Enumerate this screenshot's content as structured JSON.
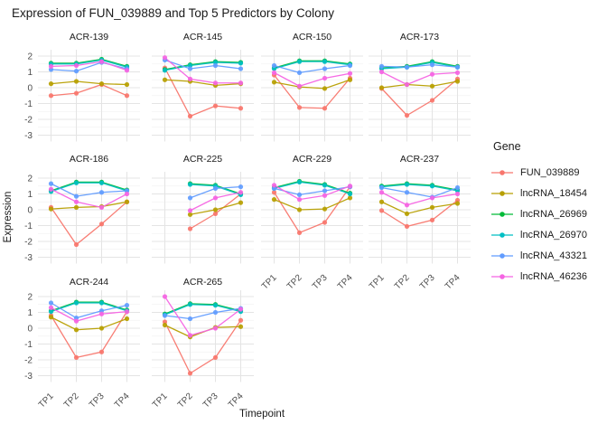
{
  "chart_data": {
    "type": "line",
    "title": "Expression of FUN_039889 and Top 5 Predictors by Colony",
    "xlabel": "Timepoint",
    "ylabel": "Expression",
    "legend_title": "Gene",
    "legend_position": "right",
    "x_categories": [
      "TP1",
      "TP2",
      "TP3",
      "TP4"
    ],
    "yticks": [
      2,
      1,
      0,
      -1,
      -2,
      -3
    ],
    "ylim": [
      -3.4,
      2.4
    ],
    "grid": true,
    "genes": [
      {
        "name": "FUN_039889",
        "color": "#F8766D"
      },
      {
        "name": "lncRNA_18454",
        "color": "#B79F00"
      },
      {
        "name": "lncRNA_26969",
        "color": "#00BA38"
      },
      {
        "name": "lncRNA_26970",
        "color": "#00BFC4"
      },
      {
        "name": "lncRNA_43321",
        "color": "#619CFF"
      },
      {
        "name": "lncRNA_46236",
        "color": "#F564E3"
      }
    ],
    "facets": [
      {
        "colony": "ACR-139",
        "series": {
          "FUN_039889": [
            -0.5,
            -0.35,
            0.2,
            -0.5
          ],
          "lncRNA_18454": [
            0.25,
            0.4,
            0.25,
            0.2
          ],
          "lncRNA_26969": [
            1.55,
            1.55,
            1.8,
            1.35
          ],
          "lncRNA_26970": [
            1.5,
            1.5,
            1.75,
            1.3
          ],
          "lncRNA_43321": [
            1.15,
            1.05,
            1.6,
            1.2
          ],
          "lncRNA_46236": [
            1.35,
            1.4,
            1.65,
            1.1
          ]
        }
      },
      {
        "colony": "ACR-145",
        "series": {
          "FUN_039889": [
            1.25,
            -1.8,
            -1.15,
            -1.3
          ],
          "lncRNA_18454": [
            0.5,
            0.4,
            0.15,
            0.25
          ],
          "lncRNA_26969": [
            1.15,
            1.45,
            1.65,
            1.6
          ],
          "lncRNA_26970": [
            1.1,
            1.4,
            1.6,
            1.55
          ],
          "lncRNA_43321": [
            1.75,
            1.2,
            1.4,
            1.2
          ],
          "lncRNA_46236": [
            1.9,
            0.55,
            0.3,
            0.3
          ]
        }
      },
      {
        "colony": "ACR-150",
        "series": {
          "FUN_039889": [
            0.8,
            -1.25,
            -1.3,
            0.6
          ],
          "lncRNA_18454": [
            0.35,
            0.05,
            -0.05,
            0.5
          ],
          "lncRNA_26969": [
            1.25,
            1.7,
            1.7,
            1.5
          ],
          "lncRNA_26970": [
            1.2,
            1.65,
            1.65,
            1.45
          ],
          "lncRNA_43321": [
            1.4,
            0.95,
            1.2,
            1.4
          ],
          "lncRNA_46236": [
            0.95,
            0.1,
            0.6,
            0.9
          ]
        }
      },
      {
        "colony": "ACR-173",
        "series": {
          "FUN_039889": [
            -0.05,
            -1.75,
            -0.8,
            0.55
          ],
          "lncRNA_18454": [
            0.0,
            0.2,
            0.1,
            0.4
          ],
          "lncRNA_26969": [
            1.25,
            1.35,
            1.65,
            1.35
          ],
          "lncRNA_26970": [
            1.2,
            1.3,
            1.6,
            1.3
          ],
          "lncRNA_43321": [
            1.35,
            1.3,
            1.45,
            1.3
          ],
          "lncRNA_46236": [
            1.0,
            0.2,
            0.85,
            0.95
          ]
        }
      },
      {
        "colony": "ACR-186",
        "series": {
          "FUN_039889": [
            0.15,
            -2.2,
            -0.9,
            0.5
          ],
          "lncRNA_18454": [
            0.05,
            0.15,
            0.2,
            0.5
          ],
          "lncRNA_26969": [
            1.2,
            1.75,
            1.75,
            1.25
          ],
          "lncRNA_26970": [
            1.15,
            1.7,
            1.7,
            1.2
          ],
          "lncRNA_43321": [
            1.65,
            0.85,
            1.1,
            1.2
          ],
          "lncRNA_46236": [
            1.3,
            0.5,
            0.15,
            1.0
          ]
        }
      },
      {
        "colony": "ACR-225",
        "series": {
          "FUN_039889": [
            null,
            -1.2,
            -0.25,
            1.0
          ],
          "lncRNA_18454": [
            null,
            -0.3,
            0.0,
            0.45
          ],
          "lncRNA_26969": [
            null,
            1.65,
            1.55,
            1.0
          ],
          "lncRNA_26970": [
            null,
            1.6,
            1.5,
            0.95
          ],
          "lncRNA_43321": [
            null,
            0.75,
            1.35,
            1.45
          ],
          "lncRNA_46236": [
            null,
            -0.05,
            0.75,
            1.1
          ]
        }
      },
      {
        "colony": "ACR-229",
        "series": {
          "FUN_039889": [
            1.1,
            -1.45,
            -0.8,
            1.45
          ],
          "lncRNA_18454": [
            0.65,
            0.0,
            0.05,
            0.75
          ],
          "lncRNA_26969": [
            1.4,
            1.8,
            1.6,
            1.05
          ],
          "lncRNA_26970": [
            1.35,
            1.75,
            1.55,
            1.0
          ],
          "lncRNA_43321": [
            1.35,
            0.95,
            1.2,
            1.45
          ],
          "lncRNA_46236": [
            1.55,
            0.65,
            0.9,
            1.5
          ]
        }
      },
      {
        "colony": "ACR-237",
        "series": {
          "FUN_039889": [
            -0.05,
            -1.05,
            -0.65,
            0.6
          ],
          "lncRNA_18454": [
            0.5,
            -0.25,
            0.15,
            0.4
          ],
          "lncRNA_26969": [
            1.5,
            1.65,
            1.55,
            1.25
          ],
          "lncRNA_26970": [
            1.45,
            1.6,
            1.5,
            1.2
          ],
          "lncRNA_43321": [
            1.4,
            1.1,
            0.8,
            1.4
          ],
          "lncRNA_46236": [
            1.1,
            0.3,
            0.75,
            1.0
          ]
        }
      },
      {
        "colony": "ACR-244",
        "series": {
          "FUN_039889": [
            0.8,
            -1.85,
            -1.5,
            1.05
          ],
          "lncRNA_18454": [
            0.7,
            -0.1,
            0.0,
            0.6
          ],
          "lncRNA_26969": [
            1.1,
            1.65,
            1.65,
            1.15
          ],
          "lncRNA_26970": [
            1.05,
            1.6,
            1.6,
            1.1
          ],
          "lncRNA_43321": [
            1.6,
            0.65,
            1.1,
            1.45
          ],
          "lncRNA_46236": [
            1.3,
            0.45,
            0.9,
            1.05
          ]
        }
      },
      {
        "colony": "ACR-265",
        "series": {
          "FUN_039889": [
            0.4,
            -2.85,
            -1.85,
            0.5
          ],
          "lncRNA_18454": [
            0.2,
            -0.55,
            0.05,
            0.1
          ],
          "lncRNA_26969": [
            0.9,
            1.55,
            1.5,
            1.1
          ],
          "lncRNA_26970": [
            0.85,
            1.5,
            1.45,
            1.05
          ],
          "lncRNA_43321": [
            0.8,
            0.6,
            1.0,
            1.25
          ],
          "lncRNA_46236": [
            2.0,
            -0.45,
            0.0,
            1.2
          ]
        }
      }
    ]
  }
}
